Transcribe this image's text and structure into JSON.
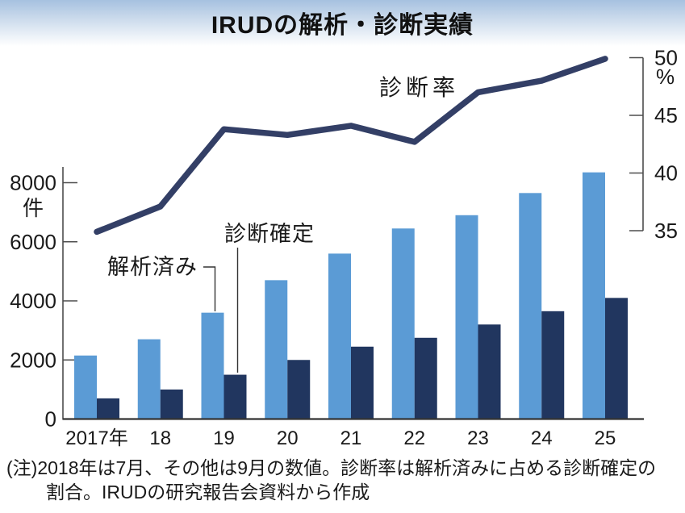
{
  "title": "IRUDの解析・診断実績",
  "note": {
    "line1": "(注)2018年は7月、その他は9月の数値。診断率は解析済みに占める診断確定の",
    "line2": "割合。IRUDの研究報告会資料から作成"
  },
  "chart_data": {
    "type": "bar",
    "subtype": "grouped-bars-with-line",
    "categories": [
      "2017年",
      "18",
      "19",
      "20",
      "21",
      "22",
      "23",
      "24",
      "25"
    ],
    "series": [
      {
        "name": "解析済み",
        "type": "bar",
        "axis": "left",
        "color": "#5b9bd5",
        "values": [
          2150,
          2700,
          3600,
          4700,
          5600,
          6450,
          6900,
          7650,
          8350
        ]
      },
      {
        "name": "診断確定",
        "type": "bar",
        "axis": "left",
        "color": "#21365f",
        "values": [
          700,
          1000,
          1500,
          2000,
          2450,
          2750,
          3200,
          3650,
          4100
        ]
      },
      {
        "name": "診断率",
        "type": "line",
        "axis": "right",
        "color": "#333f66",
        "values": [
          34.9,
          37.1,
          43.8,
          43.3,
          44.1,
          42.7,
          47.0,
          48.0,
          49.9
        ]
      }
    ],
    "left_axis": {
      "unit": "件",
      "ticks": [
        0,
        2000,
        4000,
        6000,
        8000
      ],
      "range": [
        0,
        8000
      ]
    },
    "right_axis": {
      "unit": "%",
      "ticks": [
        35,
        40,
        45,
        50
      ],
      "range": [
        35,
        50
      ]
    },
    "legend_labels": {
      "rate": "診断率",
      "analyzed": "解析済み",
      "confirmed": "診断確定"
    },
    "grid": false,
    "legend_position": "inline-annotations"
  }
}
